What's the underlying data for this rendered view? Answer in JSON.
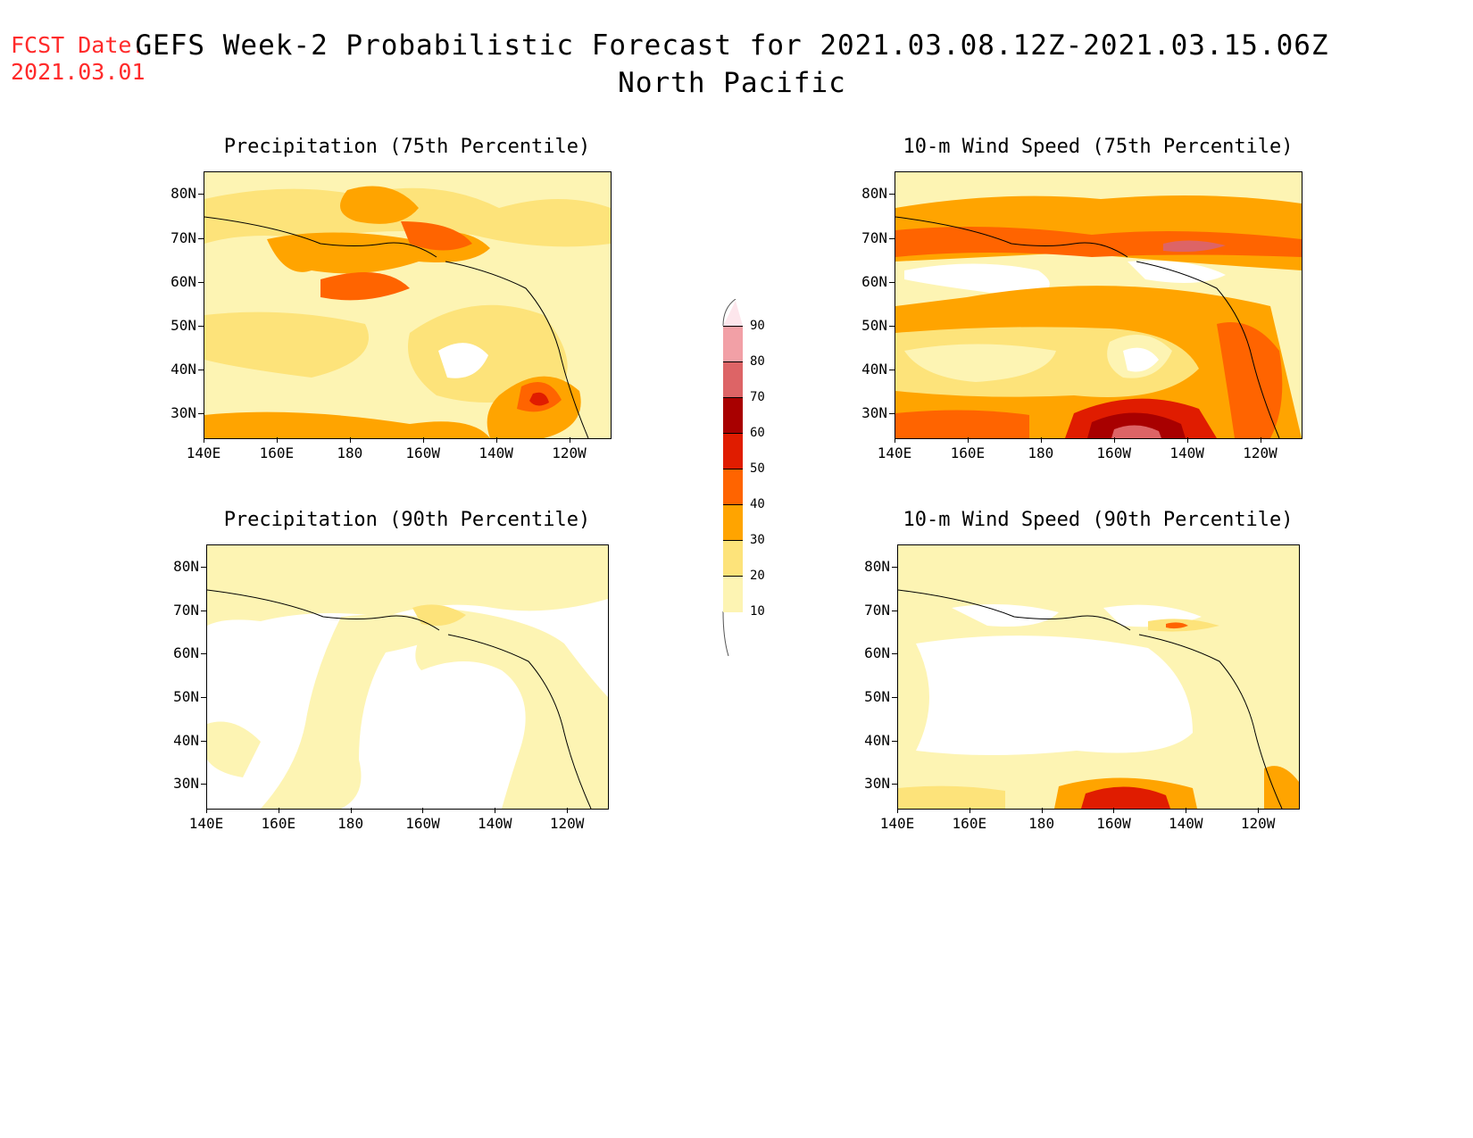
{
  "header": {
    "fcst_label": "FCST Date:",
    "fcst_date": "2021.03.01",
    "title_line1": "GEFS Week-2 Probabilistic Forecast for 2021.03.08.12Z-2021.03.15.06Z",
    "title_line2": "North Pacific"
  },
  "panels": [
    {
      "title": "Precipitation (75th Percentile)"
    },
    {
      "title": "10-m Wind Speed (75th Percentile)"
    },
    {
      "title": "Precipitation (90th Percentile)"
    },
    {
      "title": "10-m Wind Speed (90th Percentile)"
    }
  ],
  "axes": {
    "lat_labels": [
      "80N",
      "70N",
      "60N",
      "50N",
      "40N",
      "30N"
    ],
    "lon_labels": [
      "140E",
      "160E",
      "180",
      "160W",
      "140W",
      "120W"
    ]
  },
  "colorbar": {
    "levels": [
      "90",
      "80",
      "70",
      "60",
      "50",
      "40",
      "30",
      "20",
      "10"
    ],
    "colors": [
      "#f2a0a6",
      "#dd6466",
      "#a80000",
      "#e01c00",
      "#ff6400",
      "#ffa400",
      "#fde37a",
      "#fdf4b3"
    ]
  }
}
